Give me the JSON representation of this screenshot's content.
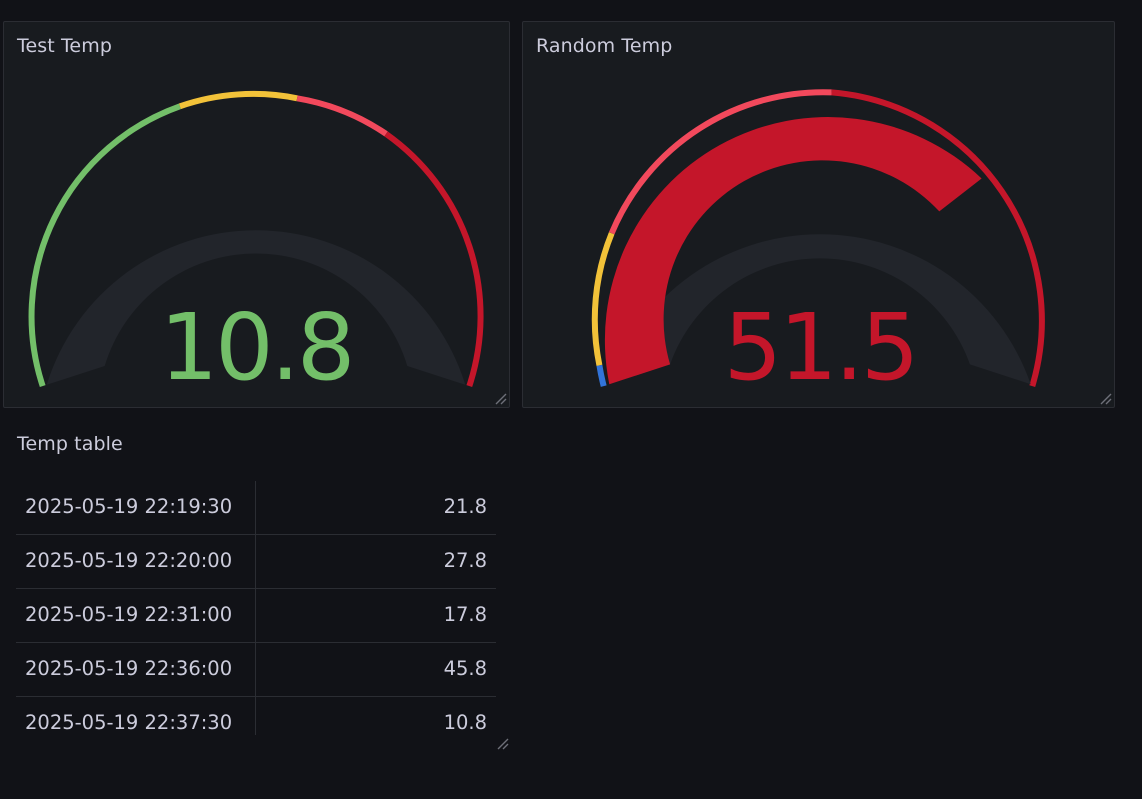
{
  "panels": {
    "test_temp": {
      "title": "Test Temp",
      "value": "10.8",
      "value_color": "#73bf69"
    },
    "random_temp": {
      "title": "Random Temp",
      "value": "51.5",
      "value_color": "#c4162a"
    }
  },
  "table": {
    "title": "Temp table",
    "rows": [
      {
        "time": "2025-05-19 22:19:30",
        "value": "21.8"
      },
      {
        "time": "2025-05-19 22:20:00",
        "value": "27.8"
      },
      {
        "time": "2025-05-19 22:31:00",
        "value": "17.8"
      },
      {
        "time": "2025-05-19 22:36:00",
        "value": "45.8"
      },
      {
        "time": "2025-05-19 22:37:30",
        "value": "10.8"
      }
    ]
  },
  "colors": {
    "threshold_green": "#73bf69",
    "threshold_yellow": "#f2c239",
    "threshold_light_red": "#f2495c",
    "threshold_red": "#c4162a",
    "threshold_blue": "#3274d9",
    "gauge_track": "#22252b",
    "panel_bg": "#181b1f",
    "page_bg": "#111217"
  },
  "icons": {
    "resize": "resize-handle-icon"
  }
}
